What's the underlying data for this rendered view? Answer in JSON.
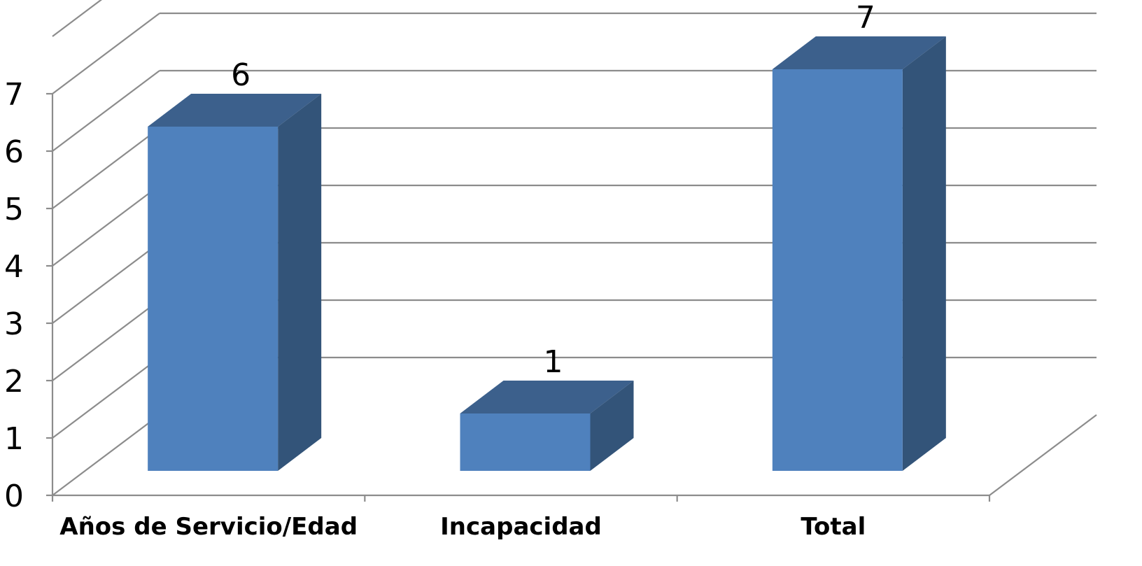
{
  "chart_data": {
    "type": "bar",
    "categories": [
      "Años de Servicio/Edad",
      "Incapacidad",
      "Total"
    ],
    "values": [
      6,
      1,
      7
    ],
    "data_labels": [
      "6",
      "1",
      "7"
    ],
    "ylim": [
      0,
      7
    ],
    "yticks": [
      "0",
      "1",
      "2",
      "3",
      "4",
      "5",
      "6",
      "7"
    ],
    "title": "",
    "xlabel": "",
    "ylabel": "",
    "grid": true,
    "style": "3d-column",
    "colors": {
      "front": "#4f81bd",
      "top": "#3c608c",
      "side": "#335479",
      "grid": "#8c8c8c"
    }
  }
}
